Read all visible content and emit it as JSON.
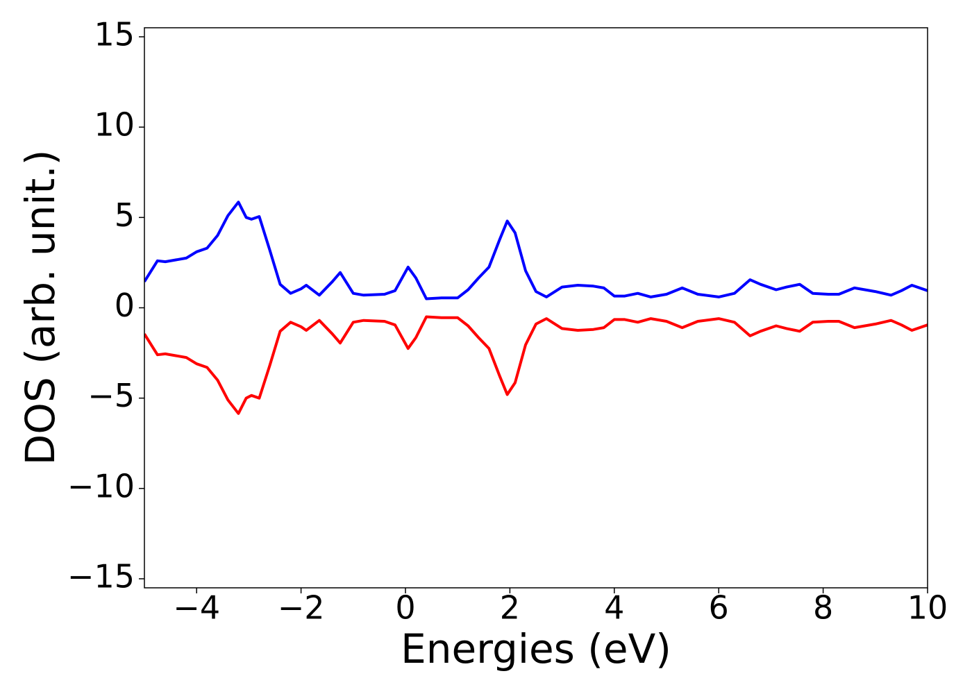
{
  "chart_data": {
    "type": "line",
    "x_label": "Energies (eV)",
    "y_label": "DOS (arb. unit.)",
    "x": [
      -5,
      -4.75,
      -4.6,
      -4.4,
      -4.2,
      -4.0,
      -3.8,
      -3.6,
      -3.4,
      -3.2,
      -3.05,
      -2.95,
      -2.8,
      -2.6,
      -2.4,
      -2.2,
      -2.0,
      -1.9,
      -1.65,
      -1.4,
      -1.25,
      -1.0,
      -0.8,
      -0.4,
      -0.2,
      0.05,
      0.2,
      0.4,
      0.7,
      1.0,
      1.2,
      1.4,
      1.6,
      1.8,
      1.95,
      2.1,
      2.3,
      2.5,
      2.7,
      3.0,
      3.3,
      3.6,
      3.8,
      4.0,
      4.2,
      4.45,
      4.7,
      5.0,
      5.3,
      5.6,
      6.0,
      6.3,
      6.6,
      6.8,
      7.1,
      7.3,
      7.55,
      7.8,
      8.1,
      8.3,
      8.6,
      9.0,
      9.3,
      9.5,
      9.7,
      10
    ],
    "series": [
      {
        "color": "#0000ff",
        "values": [
          1.45,
          2.6,
          2.55,
          2.65,
          2.75,
          3.1,
          3.3,
          4.0,
          5.1,
          5.85,
          5.0,
          4.9,
          5.05,
          3.2,
          1.3,
          0.8,
          1.05,
          1.25,
          0.7,
          1.45,
          1.95,
          0.8,
          0.7,
          0.75,
          0.95,
          2.25,
          1.65,
          0.5,
          0.55,
          0.55,
          1.0,
          1.65,
          2.25,
          3.75,
          4.8,
          4.15,
          2.05,
          0.9,
          0.6,
          1.15,
          1.25,
          1.2,
          1.1,
          0.65,
          0.65,
          0.8,
          0.6,
          0.75,
          1.1,
          0.75,
          0.6,
          0.8,
          1.55,
          1.3,
          1.0,
          1.15,
          1.3,
          0.8,
          0.75,
          0.75,
          1.1,
          0.9,
          0.7,
          0.95,
          1.25,
          0.95
        ]
      },
      {
        "color": "#ff0000",
        "values": [
          -1.45,
          -2.6,
          -2.55,
          -2.65,
          -2.75,
          -3.1,
          -3.3,
          -4.0,
          -5.1,
          -5.85,
          -5.0,
          -4.85,
          -5.0,
          -3.2,
          -1.3,
          -0.8,
          -1.05,
          -1.25,
          -0.7,
          -1.45,
          -1.95,
          -0.8,
          -0.7,
          -0.75,
          -0.95,
          -2.25,
          -1.65,
          -0.5,
          -0.55,
          -0.55,
          -1.0,
          -1.65,
          -2.25,
          -3.75,
          -4.8,
          -4.15,
          -2.05,
          -0.9,
          -0.6,
          -1.15,
          -1.25,
          -1.2,
          -1.1,
          -0.65,
          -0.65,
          -0.8,
          -0.6,
          -0.75,
          -1.1,
          -0.75,
          -0.6,
          -0.8,
          -1.55,
          -1.3,
          -1.0,
          -1.15,
          -1.3,
          -0.8,
          -0.75,
          -0.75,
          -1.1,
          -0.9,
          -0.7,
          -0.95,
          -1.25,
          -0.95
        ]
      }
    ],
    "xlim": [
      -5,
      10
    ],
    "ylim": [
      -15.5,
      15.5
    ],
    "xticks": [
      {
        "value": -4,
        "label": "−4"
      },
      {
        "value": -2,
        "label": "−2"
      },
      0,
      2,
      4,
      6,
      8,
      10
    ],
    "yticks": [
      {
        "value": -15,
        "label": "−15"
      },
      {
        "value": -10,
        "label": "−10"
      },
      {
        "value": -5,
        "label": "−5"
      },
      0,
      5,
      10,
      15
    ],
    "grid": false
  }
}
